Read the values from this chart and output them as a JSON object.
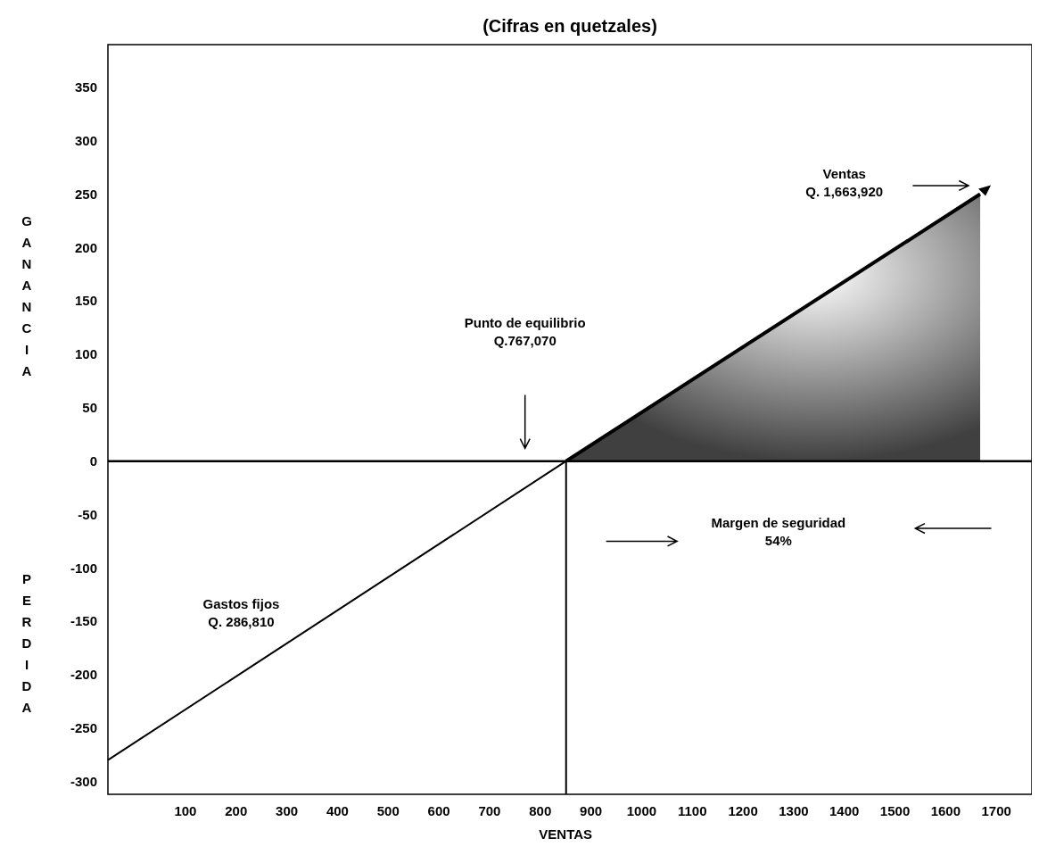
{
  "chart_data": {
    "type": "line",
    "title": "(Cifras en quetzales)",
    "xlabel": "VENTAS",
    "ylabel": "GANANCIA",
    "y2label": "PERDIDA",
    "xlim": [
      -53,
      1770
    ],
    "xticks": [
      100,
      200,
      300,
      400,
      500,
      600,
      700,
      800,
      900,
      1000,
      1100,
      1200,
      1300,
      1400,
      1500,
      1600,
      1700
    ],
    "ylim": [
      -312,
      390
    ],
    "yticks": [
      -300,
      -250,
      -200,
      -150,
      -100,
      -50,
      0,
      50,
      100,
      150,
      200,
      250,
      300,
      350
    ],
    "grid": false,
    "series": [
      {
        "color": "#000000",
        "x": [
          -53,
          851
        ],
        "values": [
          -280,
          0
        ]
      },
      {
        "type": "area",
        "color": "#404040",
        "x": [
          851,
          1668
        ],
        "values": [
          0,
          250
        ]
      }
    ],
    "ref_lines": [
      {
        "axis": "y",
        "value": 0,
        "color": "#000000"
      },
      {
        "axis": "x",
        "value": 851,
        "color": "#000000"
      }
    ],
    "annotations": [
      "Ventas\nQ. 1,663,920",
      "Punto de equilibrio\nQ.767,070",
      "Margen de seguridad\n54%",
      "Gastos fijos\nQ. 286,810"
    ]
  }
}
